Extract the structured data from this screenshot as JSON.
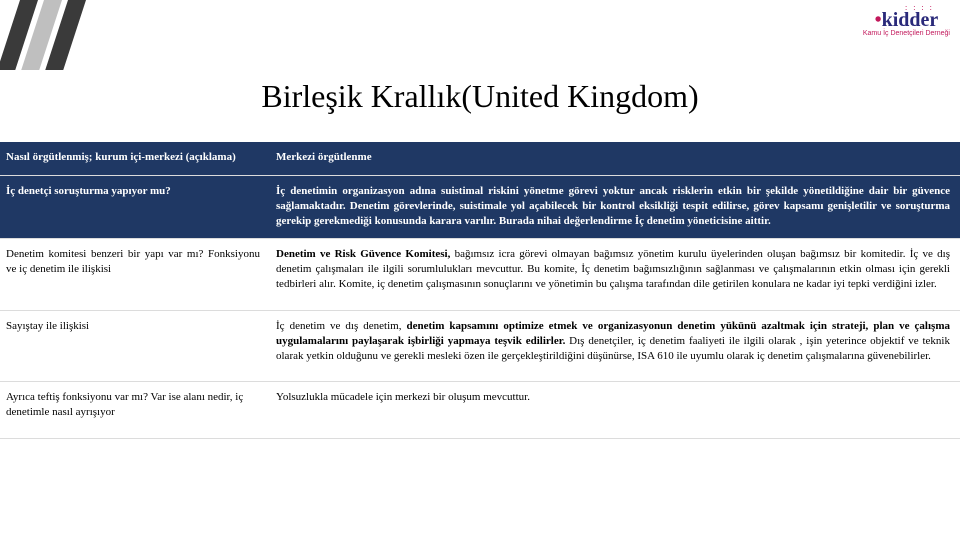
{
  "logo": {
    "dots": ": : : :",
    "prefix": "•",
    "name": "kidder",
    "tagline": "Kamu İç Denetçileri Derneği"
  },
  "title": "Birleşik Krallık(United Kingdom)",
  "rows": [
    {
      "navy": true,
      "q": "Nasıl örgütlenmiş; kurum içi-merkezi (açıklama)",
      "a": "Merkezi örgütlenme"
    },
    {
      "navy": true,
      "q": "İç denetçi soruşturma yapıyor mu?",
      "a_html": "İç denetimin organizasyon adına suistimal riskini yönetme görevi yoktur ancak risklerin etkin bir şekilde yönetildiğine dair bir güvence sağlamaktadır. Denetim görevlerinde, suistimale yol açabilecek bir kontrol eksikliği tespit edilirse, görev kapsamı genişletilir ve soruşturma gerekip gerekmediği konusunda karara varılır. Burada nihai değerlendirme  İç denetim yöneticisine aittir."
    },
    {
      "navy": false,
      "q": "Denetim komitesi benzeri bir yapı var mı? Fonksiyonu ve iç denetim ile ilişkisi",
      "a_prefix_bold": "Denetim ve Risk Güvence Komitesi, ",
      "a_rest": "bağımsız icra görevi olmayan bağımsız yönetim kurulu üyelerinden oluşan bağımsız bir komitedir. İç ve dış denetim çalışmaları ile ilgili sorumlulukları mevcuttur. Bu komite, İç denetim bağımsızlığının sağlanması ve çalışmalarının etkin olması için gerekli tedbirleri alır. Komite, iç denetim çalışmasının sonuçlarını ve yönetimin bu çalışma tarafından dile getirilen konulara ne kadar iyi tepki verdiğini izler."
    },
    {
      "navy": false,
      "q": "Sayıştay ile ilişkisi",
      "a_plain_pre": "İç denetim ve dış denetim, ",
      "a_mid_bold": "denetim kapsamını optimize etmek ve organizasyonun denetim yükünü azaltmak için strateji, plan ve çalışma uygulamalarını paylaşarak işbirliği yapmaya teşvik edilirler.",
      "a_plain_post": " Dış denetçiler, iç denetim faaliyeti ile ilgili olarak , işin yeterince objektif ve teknik olarak yetkin olduğunu ve gerekli mesleki özen ile gerçekleştirildiğini düşünürse, ISA 610 ile uyumlu olarak iç denetim çalışmalarına güvenebilirler."
    },
    {
      "navy": false,
      "q": "Ayrıca teftiş fonksiyonu var mı? Var ise alanı nedir, iç denetimle nasıl ayrışıyor",
      "a": "Yolsuzlukla mücadele için merkezi bir oluşum mevcuttur."
    }
  ]
}
